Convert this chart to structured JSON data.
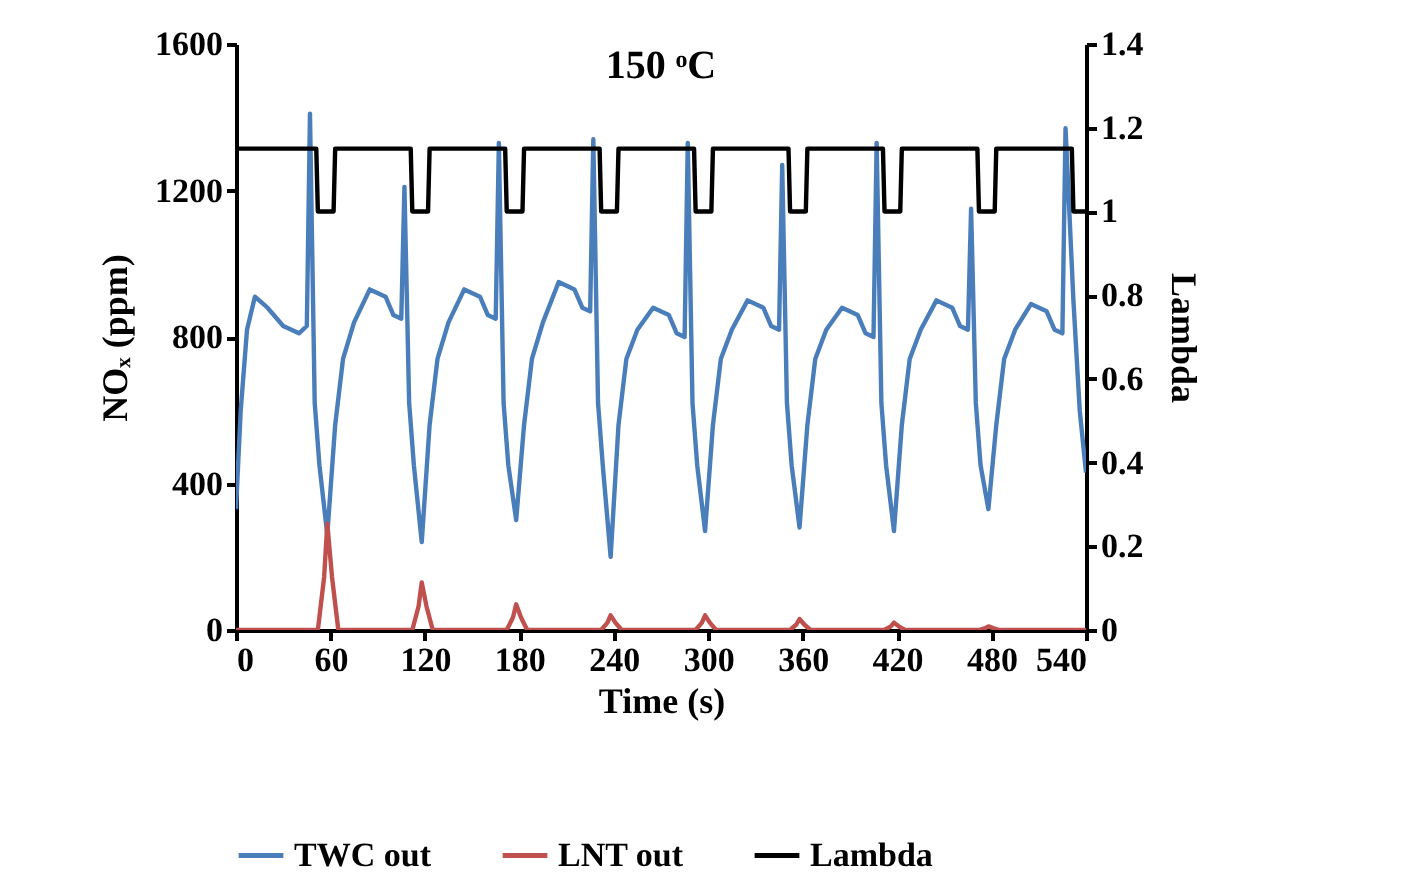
{
  "chart_data": {
    "type": "line",
    "title": "150 ᵒC",
    "xlabel": "Time (s)",
    "ylabel": "NOₓ (ppm)",
    "y2label": "Lambda",
    "xlim": [
      0,
      540
    ],
    "xticks": [
      0,
      60,
      120,
      180,
      240,
      300,
      360,
      420,
      480,
      540
    ],
    "ylim": [
      0,
      1600
    ],
    "yticks": [
      0,
      400,
      800,
      1200,
      1600
    ],
    "y2lim": [
      0,
      1.4
    ],
    "y2ticks": [
      0,
      0.2,
      0.4,
      0.6,
      0.8,
      1,
      1.2,
      1.4
    ],
    "legend": "bottom",
    "grid": false,
    "series": [
      {
        "name": "TWC out",
        "color": "#4a7ebb",
        "x": [
          0,
          3,
          7,
          12,
          20,
          30,
          40,
          45,
          47,
          50,
          53,
          58,
          63,
          68,
          75,
          85,
          95,
          100,
          105,
          107,
          110,
          113,
          118,
          123,
          128,
          135,
          145,
          155,
          160,
          165,
          167,
          170,
          173,
          178,
          183,
          188,
          195,
          205,
          215,
          220,
          225,
          227,
          230,
          233,
          238,
          243,
          248,
          255,
          265,
          275,
          280,
          285,
          287,
          290,
          293,
          298,
          303,
          308,
          315,
          325,
          335,
          340,
          345,
          347,
          350,
          353,
          358,
          363,
          368,
          375,
          385,
          395,
          400,
          405,
          407,
          410,
          413,
          418,
          423,
          428,
          435,
          445,
          455,
          460,
          465,
          467,
          470,
          473,
          478,
          483,
          488,
          495,
          505,
          515,
          520,
          525,
          527,
          532,
          536,
          540
        ],
        "values": [
          330,
          600,
          820,
          910,
          880,
          830,
          810,
          830,
          1410,
          620,
          450,
          260,
          560,
          740,
          840,
          930,
          910,
          860,
          850,
          1210,
          620,
          450,
          240,
          560,
          740,
          840,
          930,
          910,
          860,
          850,
          1330,
          620,
          450,
          300,
          560,
          740,
          840,
          950,
          930,
          880,
          870,
          1340,
          620,
          450,
          200,
          560,
          740,
          820,
          880,
          860,
          810,
          800,
          1330,
          620,
          450,
          270,
          560,
          740,
          820,
          900,
          880,
          830,
          820,
          1270,
          620,
          450,
          280,
          560,
          740,
          820,
          880,
          860,
          810,
          800,
          1330,
          620,
          450,
          270,
          560,
          740,
          820,
          900,
          880,
          830,
          820,
          1150,
          620,
          450,
          330,
          560,
          740,
          820,
          890,
          870,
          820,
          810,
          1370,
          900,
          600,
          430
        ]
      },
      {
        "name": "LNT out",
        "color": "#c0504d",
        "x": [
          0,
          52,
          56,
          58,
          61,
          65,
          112,
          116,
          118,
          121,
          125,
          172,
          176,
          178,
          181,
          185,
          232,
          236,
          238,
          241,
          245,
          292,
          296,
          298,
          301,
          305,
          352,
          356,
          358,
          361,
          365,
          412,
          416,
          418,
          421,
          425,
          472,
          476,
          478,
          481,
          485,
          540
        ],
        "values": [
          0,
          0,
          145,
          290,
          145,
          0,
          0,
          65,
          130,
          65,
          0,
          0,
          35,
          70,
          35,
          0,
          0,
          20,
          40,
          20,
          0,
          0,
          20,
          40,
          20,
          0,
          0,
          15,
          30,
          15,
          0,
          0,
          10,
          20,
          10,
          0,
          0,
          5,
          10,
          5,
          0,
          0
        ]
      },
      {
        "name": "Lambda",
        "color": "#000000",
        "axis": "y2",
        "x": [
          0,
          51,
          52,
          62,
          63,
          111,
          112,
          122,
          123,
          171,
          172,
          182,
          183,
          231,
          232,
          242,
          243,
          291,
          292,
          302,
          303,
          351,
          352,
          362,
          363,
          411,
          412,
          422,
          423,
          471,
          472,
          482,
          483,
          531,
          532,
          540
        ],
        "values": [
          1.15,
          1.15,
          1,
          1,
          1.15,
          1.15,
          1,
          1,
          1.15,
          1.15,
          1,
          1,
          1.15,
          1.15,
          1,
          1,
          1.15,
          1.15,
          1,
          1,
          1.15,
          1.15,
          1,
          1,
          1.15,
          1.15,
          1,
          1,
          1.15,
          1.15,
          1,
          1,
          1.15,
          1.15,
          1,
          1
        ]
      }
    ]
  }
}
